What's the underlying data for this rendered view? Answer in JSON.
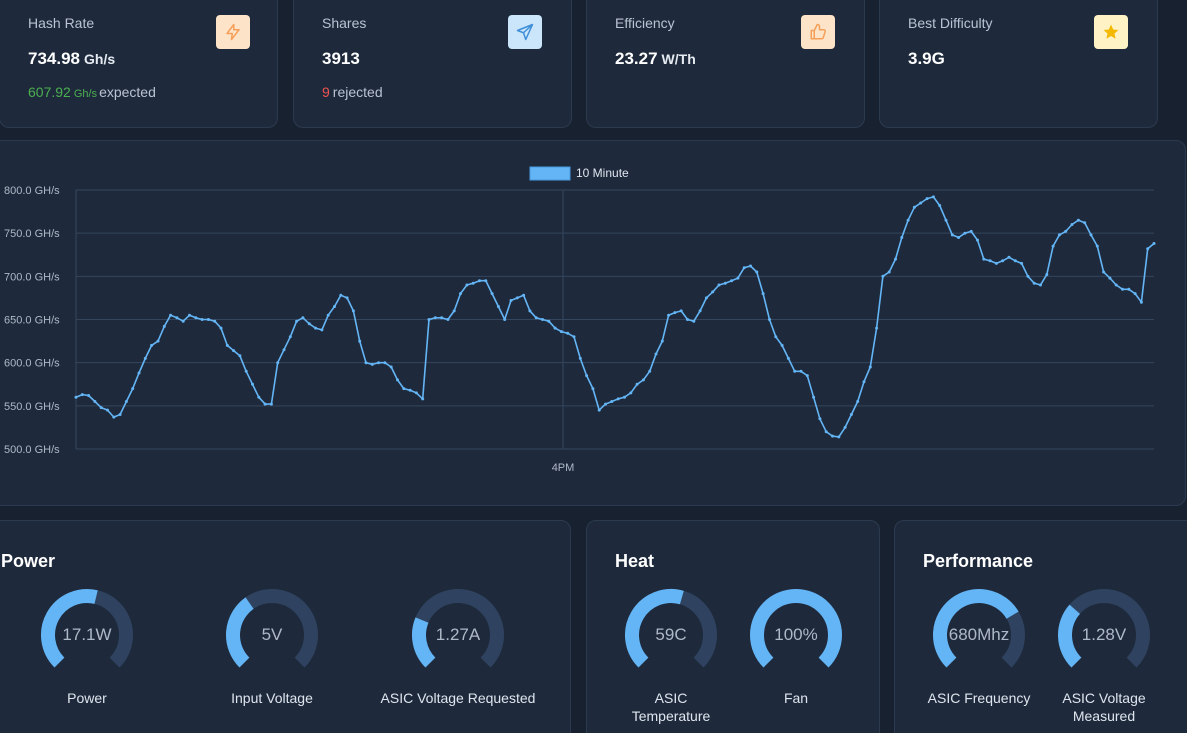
{
  "stats": {
    "hash_rate": {
      "label": "Hash Rate",
      "value": "734.98",
      "unit": "Gh/s",
      "expected_value": "607.92",
      "expected_unit": "Gh/s",
      "expected_text": "expected",
      "icon": "lightning-icon"
    },
    "shares": {
      "label": "Shares",
      "value": "3913",
      "rejected_value": "9",
      "rejected_text": "rejected",
      "icon": "send-icon"
    },
    "efficiency": {
      "label": "Efficiency",
      "value": "23.27",
      "unit": "W/Th",
      "icon": "thumbs-up-icon"
    },
    "best_difficulty": {
      "label": "Best Difficulty",
      "value": "3.9G",
      "icon": "star-icon"
    }
  },
  "colors": {
    "accent": "#64b5f6",
    "track": "#2f4360",
    "green": "#4caf50",
    "red": "#ef5350",
    "orange_icon": "#f5a05a"
  },
  "chart_data": {
    "type": "line",
    "legend": "10 Minute",
    "ylim": [
      500,
      800
    ],
    "yticks": [
      "800.0 GH/s",
      "750.0 GH/s",
      "700.0 GH/s",
      "650.0 GH/s",
      "600.0 GH/s",
      "550.0 GH/s",
      "500.0 GH/s"
    ],
    "xticks": [
      "4PM"
    ],
    "series": [
      {
        "name": "10 Minute",
        "values": [
          560,
          563,
          562,
          555,
          548,
          545,
          537,
          540,
          555,
          570,
          588,
          605,
          620,
          625,
          642,
          655,
          652,
          648,
          655,
          652,
          650,
          650,
          648,
          640,
          620,
          614,
          608,
          590,
          575,
          560,
          552,
          552,
          600,
          615,
          630,
          648,
          652,
          645,
          640,
          638,
          655,
          665,
          678,
          675,
          660,
          625,
          600,
          598,
          600,
          600,
          595,
          580,
          570,
          568,
          565,
          558,
          650,
          652,
          652,
          650,
          660,
          680,
          690,
          692,
          695,
          695,
          680,
          665,
          650,
          672,
          675,
          678,
          660,
          652,
          650,
          648,
          640,
          636,
          634,
          630,
          605,
          585,
          570,
          545,
          552,
          555,
          558,
          560,
          565,
          575,
          580,
          590,
          610,
          625,
          655,
          658,
          660,
          650,
          648,
          660,
          675,
          682,
          690,
          692,
          695,
          698,
          710,
          712,
          705,
          680,
          650,
          630,
          620,
          605,
          590,
          590,
          585,
          560,
          535,
          520,
          515,
          514,
          525,
          540,
          555,
          578,
          595,
          640,
          700,
          705,
          720,
          745,
          765,
          780,
          785,
          790,
          792,
          782,
          765,
          748,
          745,
          750,
          752,
          742,
          720,
          718,
          715,
          718,
          722,
          718,
          715,
          700,
          692,
          690,
          702,
          735,
          748,
          752,
          760,
          765,
          762,
          748,
          735,
          705,
          698,
          690,
          685,
          685,
          680,
          670,
          732,
          738
        ]
      }
    ]
  },
  "panels": {
    "power": {
      "title": "Power",
      "gauges": [
        {
          "value": "17.1W",
          "label": "Power",
          "fraction": 0.55
        },
        {
          "value": "5V",
          "label": "Input Voltage",
          "fraction": 0.37
        },
        {
          "value": "1.27A",
          "label": "ASIC Voltage Requested",
          "fraction": 0.25
        }
      ]
    },
    "heat": {
      "title": "Heat",
      "gauges": [
        {
          "value": "59C",
          "label_line1": "ASIC",
          "label_line2": "Temperature",
          "fraction": 0.56
        },
        {
          "value": "100%",
          "label": "Fan",
          "fraction": 1.0
        }
      ]
    },
    "performance": {
      "title": "Performance",
      "gauges": [
        {
          "value": "680Mhz",
          "label": "ASIC Frequency",
          "fraction": 0.72
        },
        {
          "value": "1.28V",
          "label_line1": "ASIC Voltage",
          "label_line2": "Measured",
          "fraction": 0.32
        }
      ]
    }
  }
}
